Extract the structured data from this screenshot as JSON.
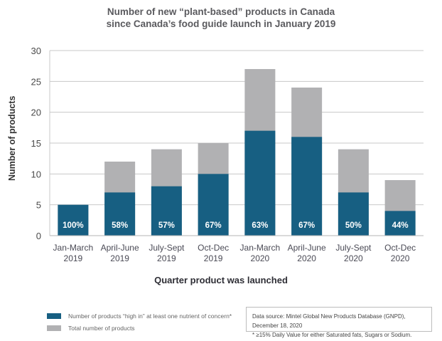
{
  "chart_data": {
    "type": "bar",
    "stacked": true,
    "title": "Number of new “plant-based” products in Canada since Canada’s food guide launch in January 2019",
    "title_lines": [
      "Number of new “plant-based” products in Canada",
      "since Canada’s food guide launch in January 2019"
    ],
    "xlabel": "Quarter product was launched",
    "ylabel": "Number of products",
    "ylim": [
      0,
      30
    ],
    "yticks": [
      0,
      5,
      10,
      15,
      20,
      25,
      30
    ],
    "grid": true,
    "categories": [
      [
        "Jan-March",
        "2019"
      ],
      [
        "April-June",
        "2019"
      ],
      [
        "July-Sept",
        "2019"
      ],
      [
        "Oct-Dec",
        "2019"
      ],
      [
        "Jan-March",
        "2020"
      ],
      [
        "April-June",
        "2020"
      ],
      [
        "July-Sept",
        "2020"
      ],
      [
        "Oct-Dec",
        "2020"
      ]
    ],
    "series": [
      {
        "name": "Total number of products",
        "color": "#b1b1b3",
        "values": [
          5,
          12,
          14,
          15,
          27,
          24,
          14,
          9
        ]
      },
      {
        "name": "Number of products “high in” at least one nutrient of concern*",
        "color": "#175f82",
        "values": [
          5,
          7,
          8,
          10,
          17,
          16,
          7,
          4
        ]
      }
    ],
    "data_labels": [
      "100%",
      "58%",
      "57%",
      "67%",
      "63%",
      "67%",
      "50%",
      "44%"
    ],
    "legend_position": "bottom-left"
  },
  "legend": [
    {
      "label": "Number of products “high in” at least one nutrient of concern*",
      "color": "#175f82"
    },
    {
      "label": "Total number of products",
      "color": "#b1b1b3"
    }
  ],
  "source": {
    "line1": "Data source: Mintel Global New Products Database (GNPD), December 18, 2020",
    "line2": "*  ≥15% Daily Value for either Saturated fats, Sugars or Sodium."
  }
}
